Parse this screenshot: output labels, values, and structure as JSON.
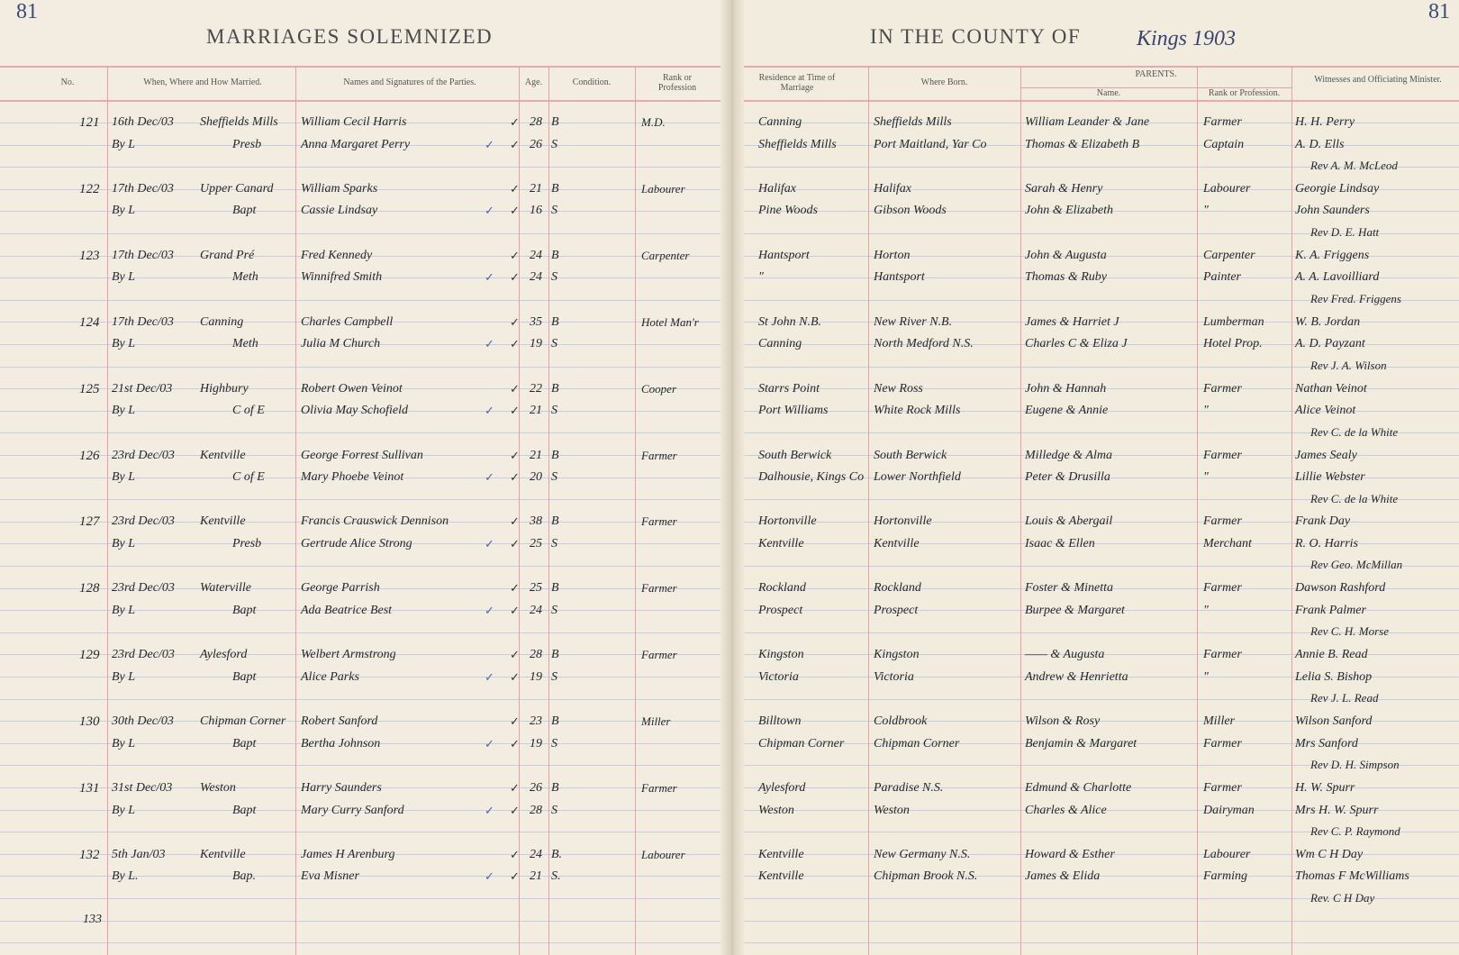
{
  "header": {
    "page_number_left": "81",
    "page_number_right": "81",
    "title_left": "MARRIAGES SOLEMNIZED",
    "title_right": "IN THE COUNTY OF",
    "county_handwritten": "Kings 1903"
  },
  "columns": {
    "no": "No.",
    "when": "When, Where and How Married.",
    "names": "Names and Signatures of the Parties.",
    "age": "Age.",
    "condition": "Condition.",
    "rank": "Rank or Profession",
    "residence": "Residence at Time of Marriage",
    "born": "Where Born.",
    "parents": "PARENTS.",
    "parents_name": "Name.",
    "parents_rank": "Rank or Profession.",
    "witnesses": "Witnesses and Officiating Minister."
  },
  "records": [
    {
      "no": "121",
      "date": "16th Dec/03",
      "place": "Sheffields Mills",
      "license": "By L",
      "denomination": "Presb",
      "groom": "William Cecil Harris",
      "groom_age": "28",
      "groom_condition": "B",
      "groom_rank": "M.D.",
      "bride": "Anna Margaret Perry",
      "bride_age": "26",
      "bride_condition": "S",
      "residence": [
        "Canning",
        "Sheffields Mills"
      ],
      "born": [
        "Sheffields Mills",
        "Port Maitland, Yar Co"
      ],
      "parents": [
        "William Leander & Jane",
        "Thomas & Elizabeth B"
      ],
      "parents_rank": [
        "Farmer",
        "Captain"
      ],
      "witnesses": [
        "H. H. Perry",
        "A. D. Ells"
      ],
      "minister": "Rev A. M. McLeod"
    },
    {
      "no": "122",
      "date": "17th Dec/03",
      "place": "Upper Canard",
      "license": "By L",
      "denomination": "Bapt",
      "groom": "William Sparks",
      "groom_age": "21",
      "groom_condition": "B",
      "groom_rank": "Labourer",
      "bride": "Cassie Lindsay",
      "bride_age": "16",
      "bride_condition": "S",
      "residence": [
        "Halifax",
        "Pine Woods"
      ],
      "born": [
        "Halifax",
        "Gibson Woods"
      ],
      "parents": [
        "Sarah & Henry",
        "John & Elizabeth"
      ],
      "parents_rank": [
        "Labourer",
        "\""
      ],
      "witnesses": [
        "Georgie Lindsay",
        "John Saunders"
      ],
      "minister": "Rev D. E. Hatt"
    },
    {
      "no": "123",
      "date": "17th Dec/03",
      "place": "Grand Pré",
      "license": "By L",
      "denomination": "Meth",
      "groom": "Fred Kennedy",
      "groom_age": "24",
      "groom_condition": "B",
      "groom_rank": "Carpenter",
      "bride": "Winnifred Smith",
      "bride_age": "24",
      "bride_condition": "S",
      "residence": [
        "Hantsport",
        "\""
      ],
      "born": [
        "Horton",
        "Hantsport"
      ],
      "parents": [
        "John & Augusta",
        "Thomas & Ruby"
      ],
      "parents_rank": [
        "Carpenter",
        "Painter"
      ],
      "witnesses": [
        "K. A. Friggens",
        "A. A. Lavoilliard"
      ],
      "minister": "Rev Fred. Friggens"
    },
    {
      "no": "124",
      "date": "17th Dec/03",
      "place": "Canning",
      "license": "By L",
      "denomination": "Meth",
      "groom": "Charles Campbell",
      "groom_age": "35",
      "groom_condition": "B",
      "groom_rank": "Hotel Man'r",
      "bride": "Julia M Church",
      "bride_age": "19",
      "bride_condition": "S",
      "residence": [
        "St John N.B.",
        "Canning"
      ],
      "born": [
        "New River N.B.",
        "North Medford N.S."
      ],
      "parents": [
        "James & Harriet J",
        "Charles C & Eliza J"
      ],
      "parents_rank": [
        "Lumberman",
        "Hotel Prop."
      ],
      "witnesses": [
        "W. B. Jordan",
        "A. D. Payzant"
      ],
      "minister": "Rev J. A. Wilson"
    },
    {
      "no": "125",
      "date": "21st Dec/03",
      "place": "Highbury",
      "license": "By L",
      "denomination": "C of E",
      "groom": "Robert Owen Veinot",
      "groom_age": "22",
      "groom_condition": "B",
      "groom_rank": "Cooper",
      "bride": "Olivia May Schofield",
      "bride_age": "21",
      "bride_condition": "S",
      "residence": [
        "Starrs Point",
        "Port Williams"
      ],
      "born": [
        "New Ross",
        "White Rock Mills"
      ],
      "parents": [
        "John & Hannah",
        "Eugene & Annie"
      ],
      "parents_rank": [
        "Farmer",
        "\""
      ],
      "witnesses": [
        "Nathan Veinot",
        "Alice Veinot"
      ],
      "minister": "Rev C. de la White"
    },
    {
      "no": "126",
      "date": "23rd Dec/03",
      "place": "Kentville",
      "license": "By L",
      "denomination": "C of E",
      "groom": "George Forrest Sullivan",
      "groom_age": "21",
      "groom_condition": "B",
      "groom_rank": "Farmer",
      "bride": "Mary Phoebe Veinot",
      "bride_age": "20",
      "bride_condition": "S",
      "residence": [
        "South Berwick",
        "Dalhousie, Kings Co"
      ],
      "born": [
        "South Berwick",
        "Lower Northfield"
      ],
      "parents": [
        "Milledge & Alma",
        "Peter & Drusilla"
      ],
      "parents_rank": [
        "Farmer",
        "\""
      ],
      "witnesses": [
        "James Sealy",
        "Lillie Webster"
      ],
      "minister": "Rev C. de la White"
    },
    {
      "no": "127",
      "date": "23rd Dec/03",
      "place": "Kentville",
      "license": "By L",
      "denomination": "Presb",
      "groom": "Francis Crauswick Dennison",
      "groom_age": "38",
      "groom_condition": "B",
      "groom_rank": "Farmer",
      "bride": "Gertrude Alice Strong",
      "bride_age": "25",
      "bride_condition": "S",
      "residence": [
        "Hortonville",
        "Kentville"
      ],
      "born": [
        "Hortonville",
        "Kentville"
      ],
      "parents": [
        "Louis & Abergail",
        "Isaac & Ellen"
      ],
      "parents_rank": [
        "Farmer",
        "Merchant"
      ],
      "witnesses": [
        "Frank Day",
        "R. O. Harris"
      ],
      "minister": "Rev Geo. McMillan"
    },
    {
      "no": "128",
      "date": "23rd Dec/03",
      "place": "Waterville",
      "license": "By L",
      "denomination": "Bapt",
      "groom": "George Parrish",
      "groom_age": "25",
      "groom_condition": "B",
      "groom_rank": "Farmer",
      "bride": "Ada Beatrice Best",
      "bride_age": "24",
      "bride_condition": "S",
      "residence": [
        "Rockland",
        "Prospect"
      ],
      "born": [
        "Rockland",
        "Prospect"
      ],
      "parents": [
        "Foster & Minetta",
        "Burpee & Margaret"
      ],
      "parents_rank": [
        "Farmer",
        "\""
      ],
      "witnesses": [
        "Dawson Rashford",
        "Frank Palmer"
      ],
      "minister": "Rev C. H. Morse"
    },
    {
      "no": "129",
      "date": "23rd Dec/03",
      "place": "Aylesford",
      "license": "By L",
      "denomination": "Bapt",
      "groom": "Welbert Armstrong",
      "groom_age": "28",
      "groom_condition": "B",
      "groom_rank": "Farmer",
      "bride": "Alice Parks",
      "bride_age": "19",
      "bride_condition": "S",
      "residence": [
        "Kingston",
        "Victoria"
      ],
      "born": [
        "Kingston",
        "Victoria"
      ],
      "parents": [
        "—— & Augusta",
        "Andrew & Henrietta"
      ],
      "parents_rank": [
        "Farmer",
        "\""
      ],
      "witnesses": [
        "Annie B. Read",
        "Lelia S. Bishop"
      ],
      "minister": "Rev J. L. Read"
    },
    {
      "no": "130",
      "date": "30th Dec/03",
      "place": "Chipman Corner",
      "license": "By L",
      "denomination": "Bapt",
      "groom": "Robert Sanford",
      "groom_age": "23",
      "groom_condition": "B",
      "groom_rank": "Miller",
      "bride": "Bertha Johnson",
      "bride_age": "19",
      "bride_condition": "S",
      "residence": [
        "Billtown",
        "Chipman Corner"
      ],
      "born": [
        "Coldbrook",
        "Chipman Corner"
      ],
      "parents": [
        "Wilson & Rosy",
        "Benjamin & Margaret"
      ],
      "parents_rank": [
        "Miller",
        "Farmer"
      ],
      "witnesses": [
        "Wilson Sanford",
        "Mrs Sanford"
      ],
      "minister": "Rev D. H. Simpson"
    },
    {
      "no": "131",
      "date": "31st Dec/03",
      "place": "Weston",
      "license": "By L",
      "denomination": "Bapt",
      "groom": "Harry Saunders",
      "groom_age": "26",
      "groom_condition": "B",
      "groom_rank": "Farmer",
      "bride": "Mary Curry Sanford",
      "bride_age": "28",
      "bride_condition": "S",
      "residence": [
        "Aylesford",
        "Weston"
      ],
      "born": [
        "Paradise N.S.",
        "Weston"
      ],
      "parents": [
        "Edmund & Charlotte",
        "Charles & Alice"
      ],
      "parents_rank": [
        "Farmer",
        "Dairyman"
      ],
      "witnesses": [
        "H. W. Spurr",
        "Mrs H. W. Spurr"
      ],
      "minister": "Rev C. P. Raymond"
    },
    {
      "no": "132",
      "date": "5th Jan/03",
      "place": "Kentville",
      "license": "By L.",
      "denomination": "Bap.",
      "groom": "James H Arenburg",
      "groom_age": "24",
      "groom_condition": "B.",
      "groom_rank": "Labourer",
      "bride": "Eva Misner",
      "bride_age": "21",
      "bride_condition": "S.",
      "residence": [
        "Kentville",
        "Kentville"
      ],
      "born": [
        "New Germany N.S.",
        "Chipman Brook N.S."
      ],
      "parents": [
        "Howard & Esther",
        "James & Elida"
      ],
      "parents_rank": [
        "Labourer",
        "Farming"
      ],
      "witnesses": [
        "Wm C H Day",
        "Thomas F McWilliams"
      ],
      "minister": "Rev. C H Day"
    }
  ],
  "next_entry_no": "133",
  "colors": {
    "paper": "#f2ede0",
    "red_rule": "#e3a0a6",
    "blue_rule": "#c5cde0",
    "ink": "#27272c",
    "header_ink": "#3b4a78"
  }
}
